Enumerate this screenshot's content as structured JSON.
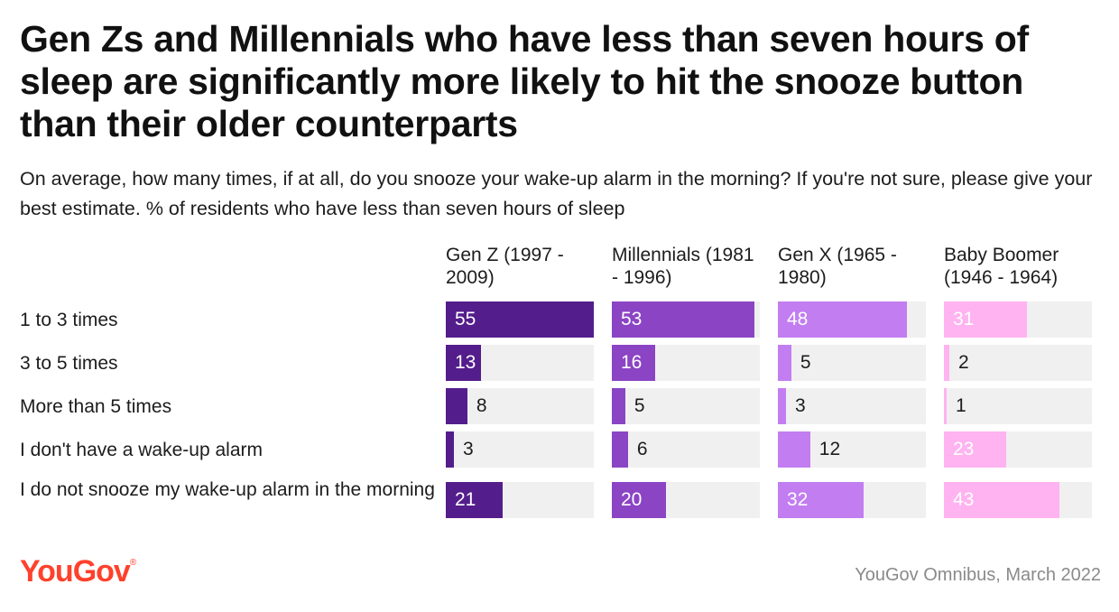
{
  "title": "Gen Zs and Millennials who have less than seven hours of sleep are significantly more likely to hit the snooze button than their older counterparts",
  "subtitle": "On average, how many times, if at all, do you snooze your wake-up alarm in the morning? If you're not sure, please give your best estimate. % of residents who have less than seven hours of sleep",
  "source": "YouGov Omnibus, March 2022",
  "logo": "YouGov",
  "colors": {
    "gen_z": "#541d8c",
    "millennials": "#8b44c4",
    "gen_x": "#c27ef0",
    "boomer": "#ffb3f0",
    "track": "#f0f0f0",
    "logo": "#ff412c"
  },
  "chart_data": {
    "type": "bar",
    "orientation": "horizontal",
    "categories": [
      "1 to 3 times",
      "3 to 5 times",
      "More than 5 times",
      "I don't have a wake-up alarm",
      "I do not snooze my wake-up alarm in the morning"
    ],
    "series": [
      {
        "name": "Gen Z (1997 - 2009)",
        "values": [
          55,
          13,
          8,
          3,
          21
        ]
      },
      {
        "name": "Millennials (1981 - 1996)",
        "values": [
          53,
          16,
          5,
          6,
          20
        ]
      },
      {
        "name": "Gen X (1965 - 1980)",
        "values": [
          48,
          5,
          3,
          12,
          32
        ]
      },
      {
        "name": "Baby Boomer (1946 - 1964)",
        "values": [
          31,
          2,
          1,
          23,
          43
        ]
      }
    ],
    "xlim": [
      0,
      55
    ],
    "grid": false,
    "legend": "column headers"
  }
}
